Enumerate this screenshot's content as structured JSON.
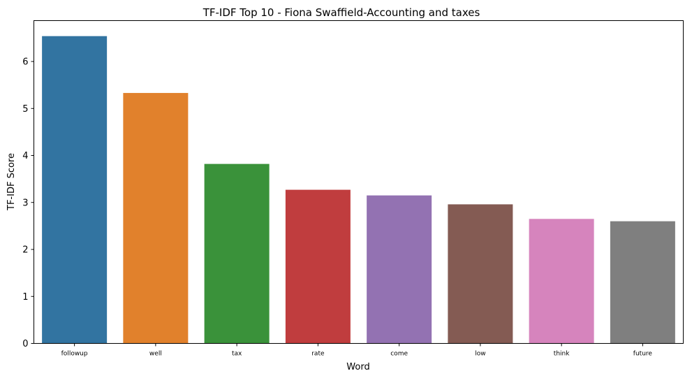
{
  "chart_data": {
    "type": "bar",
    "title": "TF-IDF Top 10 - Fiona Swaffield-Accounting and taxes",
    "xlabel": "Word",
    "ylabel": "TF-IDF Score",
    "categories": [
      "followup",
      "well",
      "tax",
      "rate",
      "come",
      "low",
      "think",
      "future"
    ],
    "values": [
      6.54,
      5.33,
      3.82,
      3.27,
      3.15,
      2.96,
      2.65,
      2.6
    ],
    "colors": [
      "#3274a1",
      "#e1812c",
      "#3a923a",
      "#c03d3e",
      "#9372b2",
      "#845b53",
      "#d684bd",
      "#7f7f7f"
    ],
    "ylim": [
      0,
      6.87
    ],
    "yticks": [
      0,
      1,
      2,
      3,
      4,
      5,
      6
    ],
    "grid": false,
    "legend": "none"
  }
}
